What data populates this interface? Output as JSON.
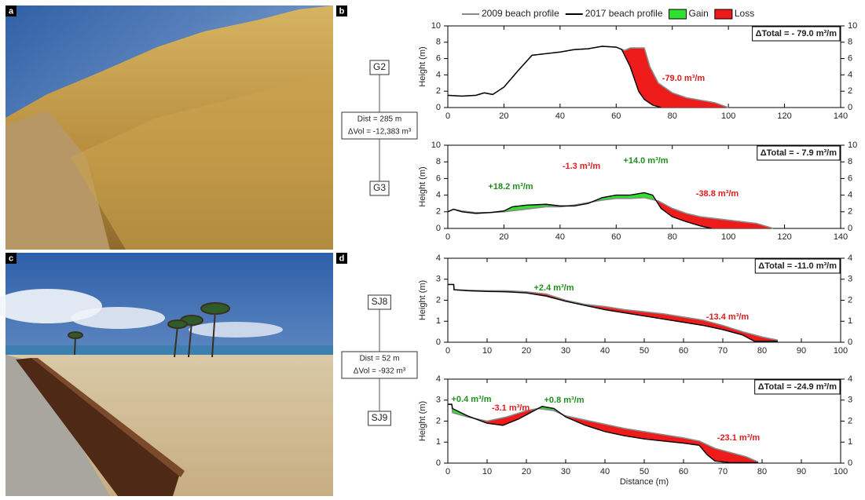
{
  "panel_letters": [
    "a",
    "b",
    "c",
    "d"
  ],
  "legend": [
    {
      "name": "2009 beach profile",
      "color": "#8a8a8a"
    },
    {
      "name": "2017 beach profile",
      "color": "#000000"
    },
    {
      "name": "Gain",
      "color": "#2fe02f"
    },
    {
      "name": "Loss",
      "color": "#ee1b1b"
    }
  ],
  "groups": [
    {
      "sites": [
        "G2",
        "G3"
      ],
      "dist": "Dist = 285 m",
      "dvol": "ΔVol = -12,383 m³"
    },
    {
      "sites": [
        "SJ8",
        "SJ9"
      ],
      "dist": "Dist = 52 m",
      "dvol": "ΔVol = -932 m³"
    }
  ],
  "chart_data": [
    {
      "type": "line",
      "ylabel": "Height (m)",
      "total": "ΔTotal = - 79.0 m³/m",
      "xlim": [
        0,
        140
      ],
      "ylim": [
        0,
        10
      ],
      "xticks": [
        0,
        20,
        40,
        60,
        80,
        100,
        120,
        140
      ],
      "yticks": [
        0,
        2,
        4,
        6,
        8,
        10
      ],
      "series": [
        {
          "color": "#8a8a8a",
          "x": [
            0,
            5,
            10,
            13,
            16,
            20,
            25,
            30,
            35,
            40,
            45,
            50,
            55,
            60,
            63,
            65,
            70,
            72,
            75,
            80,
            85,
            90,
            95,
            100
          ],
          "values": [
            1.5,
            1.4,
            1.5,
            1.8,
            1.6,
            2.5,
            4.5,
            6.4,
            6.6,
            6.8,
            7.1,
            7.2,
            7.5,
            7.4,
            7.0,
            7.3,
            7.3,
            5.0,
            3.0,
            1.8,
            1.2,
            0.9,
            0.6,
            0
          ]
        },
        {
          "color": "#000000",
          "x": [
            0,
            5,
            10,
            13,
            16,
            20,
            25,
            30,
            35,
            40,
            45,
            50,
            55,
            60,
            62,
            65,
            68,
            70,
            73,
            76
          ],
          "values": [
            1.5,
            1.4,
            1.5,
            1.8,
            1.6,
            2.5,
            4.5,
            6.4,
            6.6,
            6.8,
            7.1,
            7.2,
            7.5,
            7.4,
            7.1,
            5.0,
            2.0,
            1.0,
            0.3,
            0
          ]
        }
      ],
      "annotations": [
        {
          "text": "-79.0 m³/m",
          "color": "#e01b1b"
        }
      ]
    },
    {
      "type": "line",
      "ylabel": "Height (m)",
      "total": "ΔTotal = - 7.9 m³/m",
      "xlim": [
        0,
        140
      ],
      "ylim": [
        0,
        10
      ],
      "xticks": [
        0,
        20,
        40,
        60,
        80,
        100,
        120,
        140
      ],
      "yticks": [
        0,
        2,
        4,
        6,
        8,
        10
      ],
      "series": [
        {
          "color": "#8a8a8a",
          "x": [
            0,
            2,
            5,
            10,
            15,
            20,
            25,
            30,
            35,
            40,
            45,
            50,
            55,
            60,
            65,
            70,
            75,
            80,
            85,
            90,
            95,
            100,
            105,
            110,
            116
          ],
          "values": [
            2.0,
            2.3,
            2.1,
            1.9,
            1.9,
            2.0,
            2.2,
            2.4,
            2.6,
            2.6,
            2.8,
            3.1,
            3.4,
            3.6,
            3.6,
            3.7,
            3.3,
            2.4,
            1.8,
            1.4,
            1.2,
            1.0,
            0.8,
            0.6,
            0
          ]
        },
        {
          "color": "#000000",
          "x": [
            0,
            2,
            5,
            10,
            15,
            20,
            23,
            28,
            35,
            40,
            45,
            50,
            55,
            60,
            65,
            70,
            73,
            76,
            80,
            85,
            90,
            94
          ],
          "values": [
            2.0,
            2.3,
            2.0,
            1.8,
            1.9,
            2.1,
            2.6,
            2.8,
            2.9,
            2.7,
            2.7,
            3.0,
            3.7,
            4.0,
            4.0,
            4.3,
            4.0,
            2.4,
            1.4,
            0.8,
            0.3,
            0
          ]
        }
      ],
      "annotations": [
        {
          "text": "+18.2 m³/m",
          "color": "#1f8f1f"
        },
        {
          "text": "-1.3 m³/m",
          "color": "#e01b1b"
        },
        {
          "text": "+14.0 m³/m",
          "color": "#1f8f1f"
        },
        {
          "text": "-38.8 m³/m",
          "color": "#e01b1b"
        }
      ]
    },
    {
      "type": "line",
      "ylabel": "Height (m)",
      "total": "ΔTotal = -11.0 m³/m",
      "xlim": [
        0,
        100
      ],
      "ylim": [
        0,
        4
      ],
      "xticks": [
        0,
        10,
        20,
        30,
        40,
        50,
        60,
        70,
        80,
        90,
        100
      ],
      "yticks": [
        0,
        1,
        2,
        3,
        4
      ],
      "series": [
        {
          "color": "#8a8a8a",
          "x": [
            0,
            1.5,
            1.6,
            5,
            10,
            15,
            20,
            25,
            30,
            35,
            40,
            45,
            50,
            55,
            60,
            65,
            70,
            75,
            80,
            84
          ],
          "values": [
            2.75,
            2.75,
            2.5,
            2.48,
            2.45,
            2.45,
            2.4,
            2.3,
            2.0,
            1.8,
            1.7,
            1.55,
            1.45,
            1.35,
            1.2,
            1.05,
            0.8,
            0.5,
            0.25,
            0.1
          ]
        },
        {
          "color": "#000000",
          "x": [
            0,
            1.5,
            1.6,
            5,
            10,
            15,
            20,
            25,
            30,
            35,
            40,
            45,
            50,
            55,
            60,
            65,
            70,
            75,
            78,
            84
          ],
          "values": [
            2.75,
            2.75,
            2.5,
            2.45,
            2.42,
            2.4,
            2.35,
            2.2,
            1.95,
            1.75,
            1.55,
            1.4,
            1.25,
            1.1,
            0.95,
            0.8,
            0.6,
            0.35,
            0.05,
            0.05
          ]
        }
      ],
      "annotations": [
        {
          "text": "+2.4 m³/m",
          "color": "#1f8f1f"
        },
        {
          "text": "-13.4 m³/m",
          "color": "#e01b1b"
        }
      ]
    },
    {
      "type": "line",
      "ylabel": "Height (m)",
      "xlabel": "Distance (m)",
      "total": "ΔTotal = -24.9 m³/m",
      "xlim": [
        0,
        100
      ],
      "ylim": [
        0,
        4
      ],
      "xticks": [
        0,
        10,
        20,
        30,
        40,
        50,
        60,
        70,
        80,
        90,
        100
      ],
      "yticks": [
        0,
        1,
        2,
        3,
        4
      ],
      "series": [
        {
          "color": "#8a8a8a",
          "x": [
            0,
            1,
            1.2,
            5,
            10,
            15,
            20,
            23,
            27,
            30,
            35,
            40,
            45,
            50,
            55,
            60,
            64,
            68,
            72,
            76,
            79
          ],
          "values": [
            2.8,
            2.8,
            2.4,
            2.2,
            2.0,
            2.2,
            2.5,
            2.6,
            2.5,
            2.25,
            2.05,
            1.85,
            1.65,
            1.5,
            1.35,
            1.2,
            1.05,
            0.7,
            0.5,
            0.3,
            0.05
          ]
        },
        {
          "color": "#000000",
          "x": [
            0,
            1,
            1.2,
            5,
            10,
            14,
            18,
            22,
            24,
            27,
            30,
            35,
            40,
            45,
            50,
            55,
            60,
            64,
            66,
            68,
            72,
            79
          ],
          "values": [
            2.8,
            2.8,
            2.6,
            2.25,
            1.9,
            1.8,
            2.1,
            2.5,
            2.7,
            2.6,
            2.2,
            1.8,
            1.5,
            1.3,
            1.15,
            1.05,
            0.95,
            0.85,
            0.4,
            0.1,
            0.02,
            0.02
          ]
        }
      ],
      "annotations": [
        {
          "text": "+0.4 m³/m",
          "color": "#1f8f1f"
        },
        {
          "text": "-3.1 m³/m",
          "color": "#e01b1b"
        },
        {
          "text": "+0.8 m³/m",
          "color": "#1f8f1f"
        },
        {
          "text": "-23.1 m³/m",
          "color": "#e01b1b"
        }
      ]
    }
  ]
}
